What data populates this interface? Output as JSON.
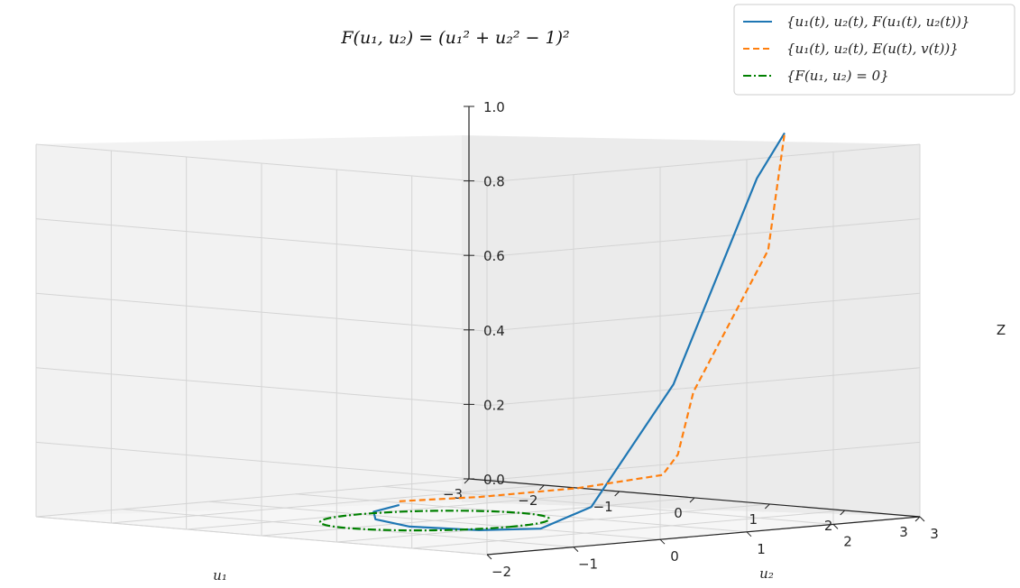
{
  "chart_data": {
    "type": "line",
    "projection": "3d",
    "title": "F(u₁, u₂) = (u₁² + u₂² − 1)²",
    "xlabel": "u₁",
    "ylabel": "u₂",
    "zlabel": "Z",
    "xlim": [
      -3,
      3
    ],
    "ylim": [
      -2,
      3
    ],
    "zlim": [
      0,
      1.0
    ],
    "x_ticks": [
      "−3",
      "−2",
      "−1",
      "0",
      "1",
      "2",
      "3"
    ],
    "y_ticks": [
      "−2",
      "−1",
      "0",
      "1",
      "2",
      "3"
    ],
    "z_ticks": [
      "0.0",
      "0.2",
      "0.4",
      "0.6",
      "0.8",
      "1.0"
    ],
    "grid": true,
    "legend_position": "top-right",
    "series": [
      {
        "name": "{u₁(t), u₂(t), F(u₁(t), u₂(t))}",
        "color": "#1f77b4",
        "style": "solid",
        "points": [
          [
            -1.45,
            0.85,
            0.0
          ],
          [
            -1.1,
            0.25,
            0.0
          ],
          [
            -0.5,
            -0.25,
            0.0
          ],
          [
            0.3,
            -0.55,
            0.0
          ],
          [
            1.05,
            -0.4,
            0.0
          ],
          [
            1.35,
            0.05,
            0.0
          ],
          [
            1.45,
            0.55,
            0.05
          ],
          [
            1.45,
            1.5,
            0.36
          ],
          [
            1.35,
            2.55,
            0.89
          ],
          [
            1.2,
            3.0,
            1.0
          ]
        ]
      },
      {
        "name": "{u₁(t), u₂(t), E(u(t), v(t))}",
        "color": "#ff7f0e",
        "style": "dashed",
        "points": [
          [
            -1.45,
            0.85,
            0.01
          ],
          [
            -0.95,
            1.35,
            0.02
          ],
          [
            -0.1,
            1.75,
            0.05
          ],
          [
            0.9,
            1.85,
            0.1
          ],
          [
            1.45,
            1.55,
            0.17
          ],
          [
            1.6,
            1.6,
            0.34
          ],
          [
            1.5,
            2.55,
            0.7
          ],
          [
            1.2,
            3.0,
            1.0
          ]
        ]
      },
      {
        "name": "{F(u₁, u₂) = 0}",
        "color": "#008000",
        "style": "dashdot",
        "curve": "unit circle u₁² + u₂² = 1 at Z = 0"
      }
    ]
  }
}
